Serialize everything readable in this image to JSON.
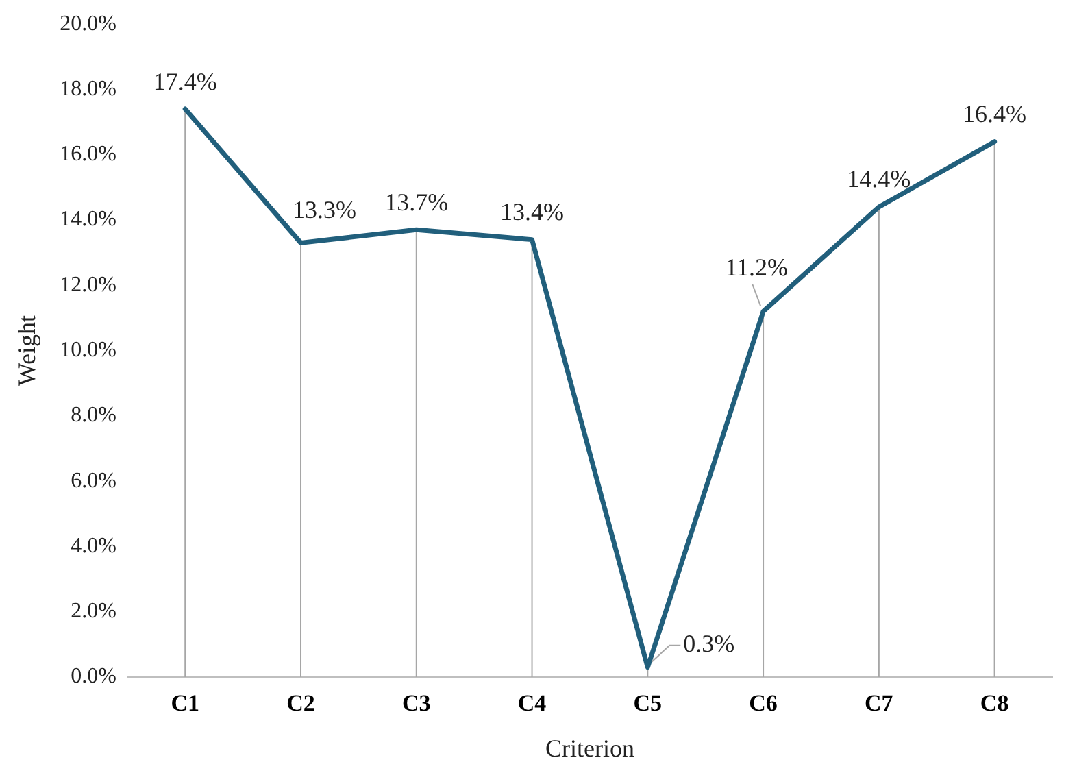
{
  "chart_data": {
    "type": "line",
    "xlabel": "Criterion",
    "ylabel": "Weight",
    "categories": [
      "C1",
      "C2",
      "C3",
      "C4",
      "C5",
      "C6",
      "C7",
      "C8"
    ],
    "series": [
      {
        "color": "#215f7c",
        "values": [
          17.4,
          13.3,
          13.7,
          13.4,
          0.3,
          11.2,
          14.4,
          16.4
        ],
        "value_labels": [
          "17.4%",
          "13.3%",
          "13.7%",
          "13.4%",
          "0.3%",
          "11.2%",
          "14.4%",
          "16.4%"
        ]
      }
    ],
    "ylim": [
      0,
      20
    ],
    "yticks": [
      {
        "value": 0,
        "label": "0.0%"
      },
      {
        "value": 2,
        "label": "2.0%"
      },
      {
        "value": 4,
        "label": "4.0%"
      },
      {
        "value": 6,
        "label": "6.0%"
      },
      {
        "value": 8,
        "label": "8.0%"
      },
      {
        "value": 10,
        "label": "10.0%"
      },
      {
        "value": 12,
        "label": "12.0%"
      },
      {
        "value": 14,
        "label": "14.0%"
      },
      {
        "value": 16,
        "label": "16.0%"
      },
      {
        "value": 18,
        "label": "18.0%"
      },
      {
        "value": 20,
        "label": "20.0%"
      }
    ],
    "grid": "x",
    "legend": false,
    "marker": "none",
    "line_style": "solid"
  }
}
